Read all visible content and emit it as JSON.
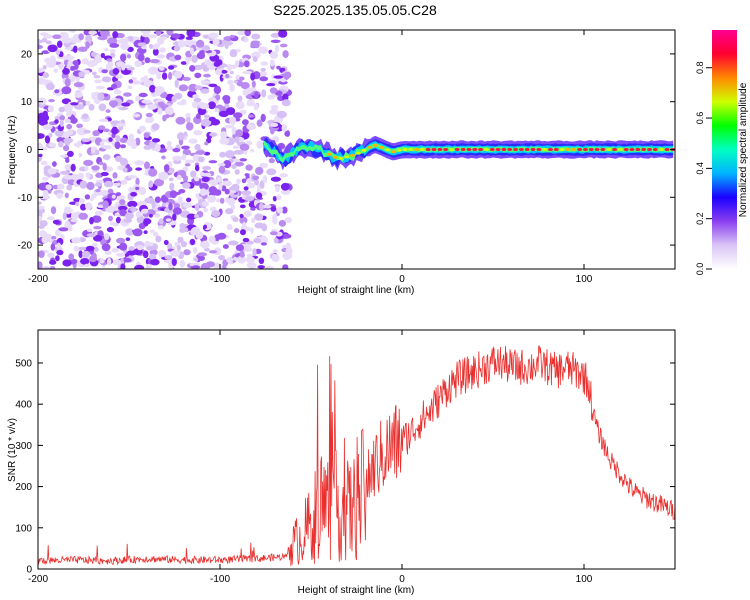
{
  "title": "S225.2025.135.05.05.C28",
  "chart_data": [
    {
      "type": "heatmap",
      "xlabel": "Height of straight line (km)",
      "ylabel": "Frequency (Hz)",
      "xlim": [
        -200,
        150
      ],
      "ylim": [
        -25,
        25
      ],
      "x_ticks": [
        -200,
        -100,
        0,
        100
      ],
      "y_ticks": [
        -20,
        -10,
        0,
        10,
        20
      ],
      "colorbar": {
        "label": "Normalized spectral amplitude",
        "range": [
          0,
          0.95
        ],
        "ticks": [
          0.0,
          0.2,
          0.4,
          0.6,
          0.8
        ],
        "colormap": [
          "#ffffff",
          "#d9c4f5",
          "#8a3ff0",
          "#1a00ff",
          "#00b4ff",
          "#00ffc0",
          "#00ff00",
          "#d0ff00",
          "#ff8800",
          "#ff0030",
          "#ff0090"
        ]
      },
      "noise_region_x": [
        -200,
        -62
      ],
      "ridge": {
        "description_points_x": [
          -75,
          -65,
          -55,
          -45,
          -35,
          -25,
          -15,
          -5,
          0,
          50,
          100,
          150
        ],
        "frequency_y": [
          1,
          -2,
          0.5,
          0,
          -2,
          -1,
          1,
          -0.5,
          0,
          0,
          0,
          0
        ]
      },
      "grid": false
    },
    {
      "type": "line",
      "xlabel": "Height of straight line (km)",
      "ylabel": "SNR (10 * v/v)",
      "xlim": [
        -200,
        150
      ],
      "ylim": [
        0,
        580
      ],
      "x_ticks": [
        -200,
        -100,
        0,
        100
      ],
      "y_ticks": [
        0,
        100,
        200,
        300,
        400,
        500
      ],
      "series": [
        {
          "color": "#e8302e",
          "x": [
            -200,
            -180,
            -160,
            -140,
            -120,
            -100,
            -80,
            -65,
            -60,
            -55,
            -50,
            -45,
            -40,
            -35,
            -30,
            -25,
            -20,
            -15,
            -10,
            -5,
            0,
            5,
            10,
            15,
            20,
            25,
            30,
            35,
            40,
            45,
            50,
            55,
            60,
            65,
            70,
            75,
            80,
            85,
            90,
            95,
            100,
            103,
            105,
            108,
            112,
            115,
            120,
            125,
            130,
            135,
            140,
            145,
            150
          ],
          "y": [
            20,
            22,
            20,
            25,
            22,
            22,
            25,
            30,
            60,
            80,
            110,
            150,
            160,
            150,
            140,
            150,
            200,
            250,
            280,
            300,
            310,
            330,
            360,
            380,
            410,
            440,
            460,
            470,
            480,
            490,
            500,
            500,
            490,
            490,
            490,
            500,
            490,
            480,
            490,
            480,
            470,
            440,
            380,
            330,
            290,
            260,
            230,
            200,
            180,
            170,
            160,
            150,
            140
          ]
        }
      ],
      "grid": false
    }
  ]
}
